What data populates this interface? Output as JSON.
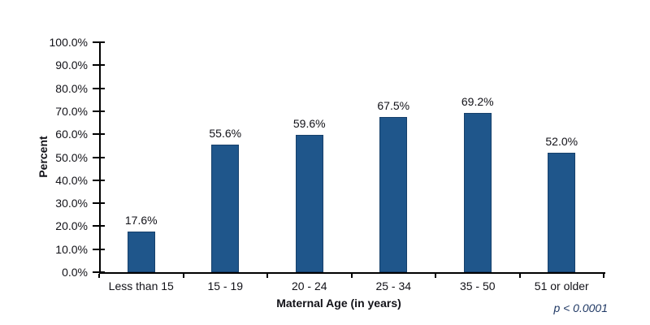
{
  "chart_data": {
    "type": "bar",
    "categories": [
      "Less than 15",
      "15 - 19",
      "20 - 24",
      "25 - 34",
      "35 - 50",
      "51 or older"
    ],
    "values": [
      17.6,
      55.6,
      59.6,
      67.5,
      69.2,
      52.0
    ],
    "value_labels": [
      "17.6%",
      "55.6%",
      "59.6%",
      "67.5%",
      "69.2%",
      "52.0%"
    ],
    "title": "",
    "xlabel": "Maternal Age (in years)",
    "ylabel": "Percent",
    "ylim": [
      0,
      100
    ],
    "y_tick_step": 10,
    "y_tick_labels": [
      "0.0%",
      "10.0%",
      "20.0%",
      "30.0%",
      "40.0%",
      "50.0%",
      "60.0%",
      "70.0%",
      "80.0%",
      "90.0%",
      "100.0%"
    ],
    "grid": false,
    "legend": "none",
    "annotation": "p < 0.0001",
    "colors": {
      "bar_fill": "#1F568B",
      "bar_border": "#16406B",
      "axis": "#000000",
      "text": "#121218",
      "annotation_text": "#1F3864",
      "background": "#FFFFFF"
    }
  }
}
